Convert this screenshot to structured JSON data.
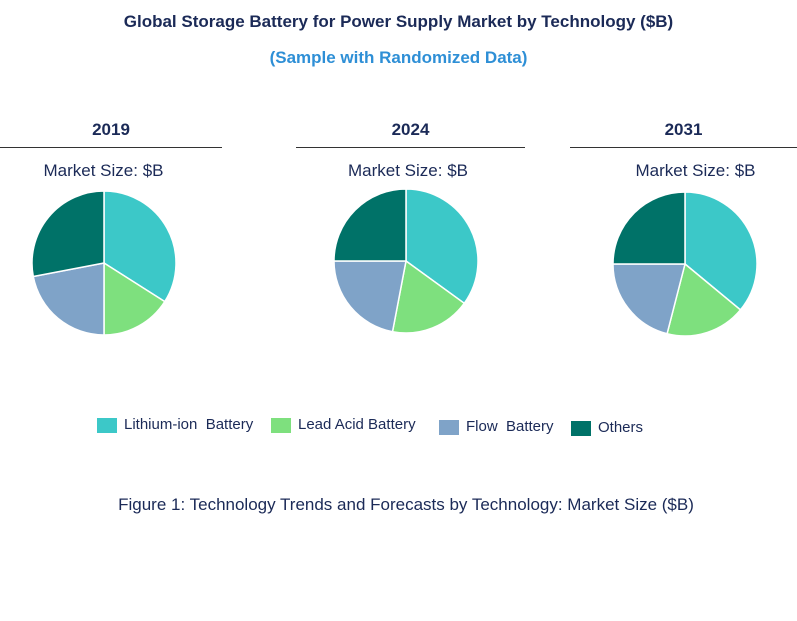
{
  "title": "Global Storage Battery for Power Supply Market by Technology ($B)",
  "subtitle": "(Sample with Randomized Data)",
  "caption": "Figure 1: Technology Trends and Forecasts by Technology: Market Size ($B)",
  "colors": {
    "lithium_ion": "#3cc8c8",
    "lead_acid": "#7ee07e",
    "flow": "#7fa3c8",
    "others": "#007268"
  },
  "legend": [
    {
      "label": "Lithium-ion  Battery",
      "color": "#3cc8c8"
    },
    {
      "label": "Lead Acid Battery",
      "color": "#7ee07e"
    },
    {
      "label": "Flow  Battery",
      "color": "#7fa3c8"
    },
    {
      "label": "Others",
      "color": "#007268"
    }
  ],
  "chart_data": [
    {
      "type": "pie",
      "title": "2019",
      "subtitle": "Market Size: $B",
      "categories": [
        "Lithium-ion  Battery",
        "Lead Acid Battery",
        "Flow  Battery",
        "Others"
      ],
      "values": [
        34,
        16,
        22,
        28
      ]
    },
    {
      "type": "pie",
      "title": "2024",
      "subtitle": "Market Size: $B",
      "categories": [
        "Lithium-ion  Battery",
        "Lead Acid Battery",
        "Flow  Battery",
        "Others"
      ],
      "values": [
        35,
        18,
        22,
        25
      ]
    },
    {
      "type": "pie",
      "title": "2031",
      "subtitle": "Market Size: $B",
      "categories": [
        "Lithium-ion  Battery",
        "Lead Acid Battery",
        "Flow  Battery",
        "Others"
      ],
      "values": [
        36,
        18,
        21,
        25
      ]
    }
  ]
}
